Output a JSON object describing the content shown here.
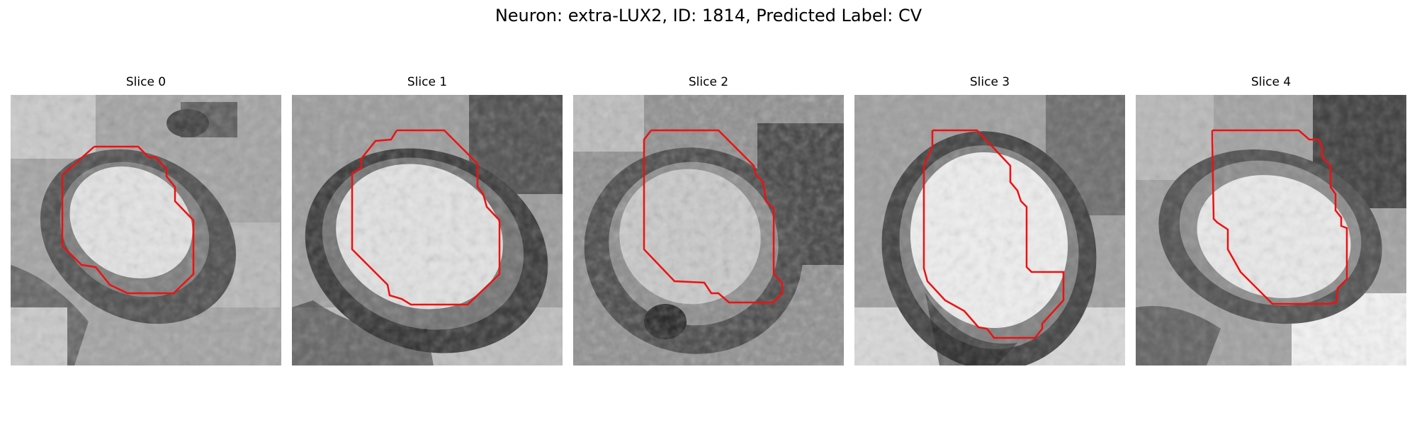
{
  "figure": {
    "title": "Neuron: extra-LUX2, ID: 1814, Predicted Label: CV"
  },
  "colors": {
    "contour": "#ee1111",
    "membrane": "#3a3a3a",
    "background": "#9a9a9a"
  },
  "panels": [
    {
      "label": "Slice 0"
    },
    {
      "label": "Slice 1"
    },
    {
      "label": "Slice 2"
    },
    {
      "label": "Slice 3"
    },
    {
      "label": "Slice 4"
    }
  ]
}
